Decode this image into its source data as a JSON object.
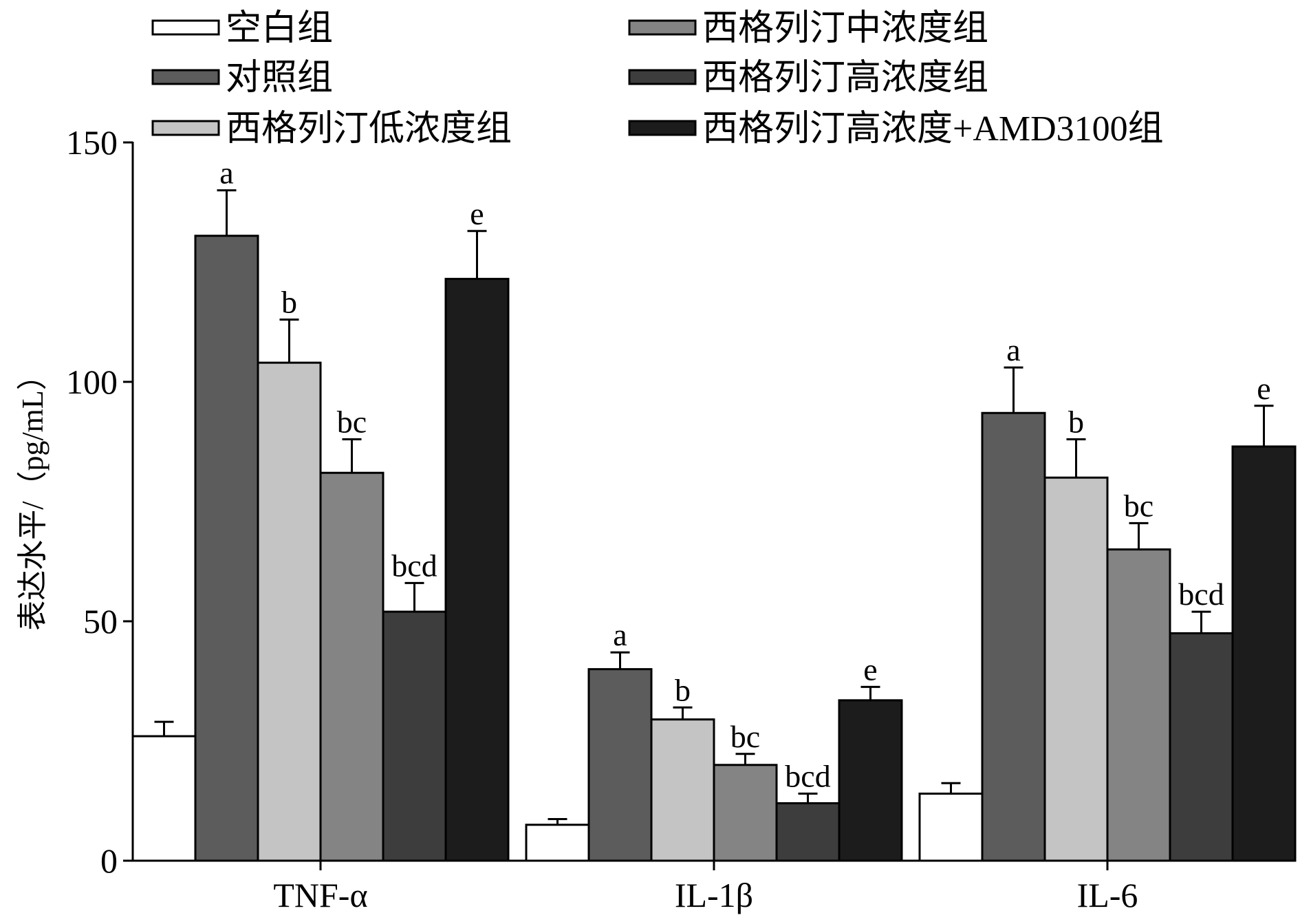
{
  "chart_data": {
    "type": "bar",
    "title": "",
    "xlabel": "",
    "ylabel": "表达水平/（pg/mL）",
    "ylim": [
      0,
      150
    ],
    "yticks": [
      0,
      50,
      100,
      150
    ],
    "categories": [
      "TNF-α",
      "IL-1β",
      "IL-6"
    ],
    "grid": false,
    "legend_position": "top",
    "series": [
      {
        "name": "空白组",
        "color": "#ffffff",
        "values": [
          26,
          7.5,
          14
        ],
        "errors": [
          3,
          1.2,
          2.2
        ],
        "labels": [
          "",
          "",
          ""
        ]
      },
      {
        "name": "对照组",
        "color": "#5c5c5c",
        "values": [
          130.5,
          40,
          93.5
        ],
        "errors": [
          9.5,
          3.5,
          9.5
        ],
        "labels": [
          "a",
          "a",
          "a"
        ]
      },
      {
        "name": "西格列汀低浓度组",
        "color": "#c4c4c4",
        "values": [
          104,
          29.5,
          80
        ],
        "errors": [
          9,
          2.5,
          8
        ],
        "labels": [
          "b",
          "b",
          "b"
        ]
      },
      {
        "name": "西格列汀中浓度组",
        "color": "#848484",
        "values": [
          81,
          20,
          65
        ],
        "errors": [
          7,
          2.3,
          5.5
        ],
        "labels": [
          "bc",
          "bc",
          "bc"
        ]
      },
      {
        "name": "西格列汀高浓度组",
        "color": "#3d3d3d",
        "values": [
          52,
          12,
          47.5
        ],
        "errors": [
          6,
          2,
          4.5
        ],
        "labels": [
          "bcd",
          "bcd",
          "bcd"
        ]
      },
      {
        "name": "西格列汀高浓度+AMD3100组",
        "color": "#1c1c1c",
        "values": [
          121.5,
          33.5,
          86.5
        ],
        "errors": [
          10,
          2.8,
          8.5
        ],
        "labels": [
          "e",
          "e",
          "e"
        ]
      }
    ]
  }
}
